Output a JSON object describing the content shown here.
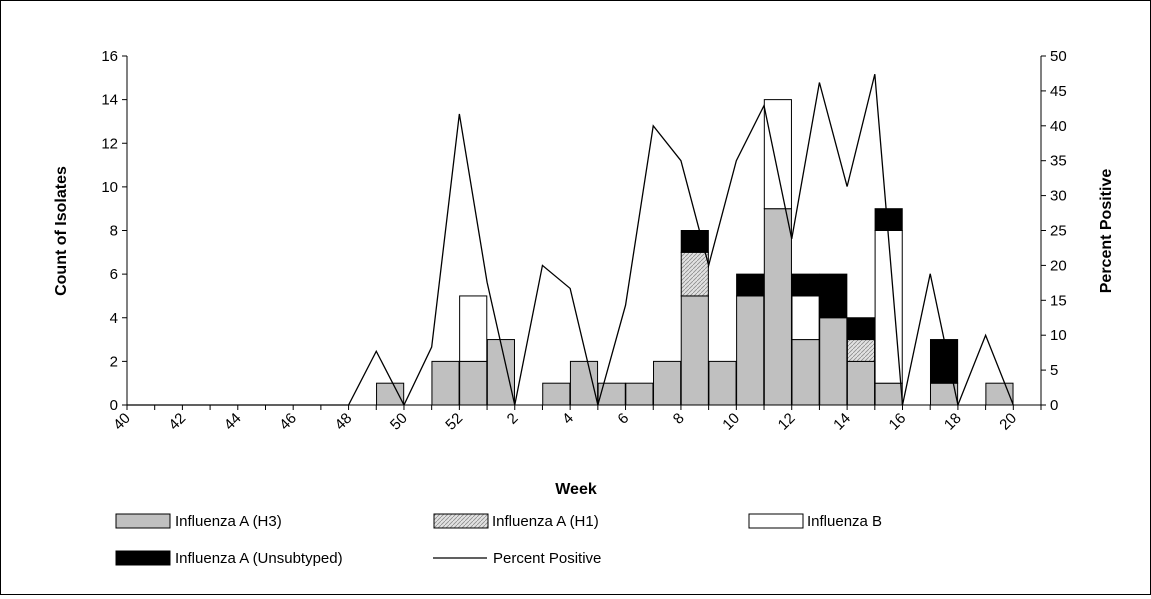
{
  "chart_data": {
    "type": "bar",
    "stacked": true,
    "xlabel": "Week",
    "ylabel_left": "Count of Isolates",
    "ylabel_right": "Percent Positive",
    "ylim_left": [
      0,
      16
    ],
    "yticks_left": [
      0,
      2,
      4,
      6,
      8,
      10,
      12,
      14,
      16
    ],
    "ylim_right": [
      0,
      50
    ],
    "yticks_right": [
      0,
      5,
      10,
      15,
      20,
      25,
      30,
      35,
      40,
      45,
      50
    ],
    "categories": [
      40,
      41,
      42,
      43,
      44,
      45,
      46,
      47,
      48,
      49,
      50,
      51,
      52,
      1,
      2,
      3,
      4,
      5,
      6,
      7,
      8,
      9,
      10,
      11,
      12,
      13,
      14,
      15,
      16,
      17,
      18,
      19,
      20
    ],
    "xtick_labels": [
      "40",
      "42",
      "44",
      "46",
      "48",
      "50",
      "52",
      "2",
      "4",
      "6",
      "8",
      "10",
      "12",
      "14",
      "16",
      "18",
      "20"
    ],
    "legend": [
      "Influenza A (H3)",
      "Influenza A (H1)",
      "Influenza B",
      "Influenza A (Unsubtyped)",
      "Percent Positive"
    ],
    "legend_position": "bottom",
    "colors": {
      "h3": "#c0c0c0",
      "h1": "hatched",
      "b": "#ffffff",
      "unsubtyped": "#000000",
      "line": "#000000"
    },
    "series": [
      {
        "name": "Influenza A (H3)",
        "values": [
          0,
          0,
          0,
          0,
          0,
          0,
          0,
          0,
          0,
          1,
          0,
          2,
          2,
          3,
          0,
          1,
          2,
          1,
          1,
          2,
          5,
          2,
          5,
          9,
          3,
          4,
          2,
          1,
          0,
          1,
          0,
          1,
          0
        ]
      },
      {
        "name": "Influenza A (H1)",
        "values": [
          0,
          0,
          0,
          0,
          0,
          0,
          0,
          0,
          0,
          0,
          0,
          0,
          0,
          0,
          0,
          0,
          0,
          0,
          0,
          0,
          2,
          0,
          0,
          0,
          0,
          0,
          1,
          0,
          0,
          0,
          0,
          0,
          0
        ]
      },
      {
        "name": "Influenza B",
        "values": [
          0,
          0,
          0,
          0,
          0,
          0,
          0,
          0,
          0,
          0,
          0,
          0,
          3,
          0,
          0,
          0,
          0,
          0,
          0,
          0,
          0,
          0,
          0,
          5,
          2,
          0,
          0,
          7,
          0,
          0,
          0,
          0,
          0
        ]
      },
      {
        "name": "Influenza A (Unsubtyped)",
        "values": [
          0,
          0,
          0,
          0,
          0,
          0,
          0,
          0,
          0,
          0,
          0,
          0,
          0,
          0,
          0,
          0,
          0,
          0,
          0,
          0,
          1,
          0,
          1,
          0,
          1,
          2,
          1,
          1,
          0,
          2,
          0,
          0,
          0
        ]
      }
    ],
    "line_series": {
      "name": "Percent Positive",
      "x": [
        40,
        41,
        42,
        43,
        44,
        45,
        46,
        47,
        48,
        49,
        50,
        51,
        52,
        1,
        2,
        3,
        4,
        5,
        6,
        7,
        8,
        9,
        10,
        11,
        12,
        13,
        14,
        15,
        16,
        17,
        18,
        19,
        20
      ],
      "values": [
        0,
        0,
        0,
        0,
        0,
        0,
        0,
        0,
        0,
        7.7,
        0,
        8.3,
        41.7,
        17.6,
        0,
        20,
        16.7,
        0,
        14.3,
        40,
        35,
        20,
        35,
        42.9,
        23.8,
        46.2,
        31.3,
        47.4,
        0,
        18.8,
        0,
        10,
        0
      ]
    }
  }
}
